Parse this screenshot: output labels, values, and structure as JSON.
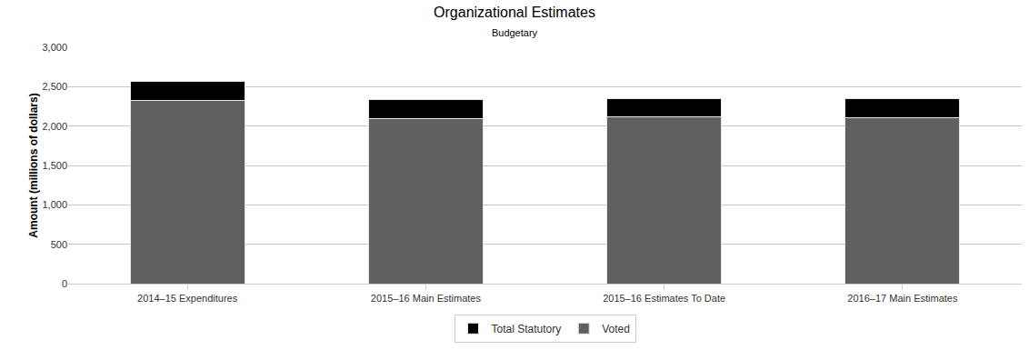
{
  "chart_data": {
    "type": "bar",
    "title": "Organizational Estimates",
    "subtitle": "Budgetary",
    "y_label": "Amount (millions of dollars)",
    "categories": [
      "2014–15 Expenditures",
      "2015–16 Main Estimates",
      "2015–16 Estimates To Date",
      "2016–17 Main Estimates"
    ],
    "series": [
      {
        "name": "Voted",
        "color": "#606060",
        "values": [
          2330,
          2096,
          2119,
          2107
        ]
      },
      {
        "name": "Total Statutory",
        "color": "#000000",
        "values": [
          235,
          246,
          234,
          246
        ]
      }
    ],
    "stacked": true,
    "ylim": [
      0,
      3000
    ],
    "yticks": [
      0,
      500,
      {
        "value": 1000,
        "label": "1,000"
      },
      {
        "value": 1500,
        "label": "1,500"
      },
      {
        "value": 2000,
        "label": "2,000"
      },
      {
        "value": 2500,
        "label": "2,500"
      },
      {
        "value": 3000,
        "label": "3,000"
      }
    ],
    "grid": true,
    "legend": "bottom"
  }
}
